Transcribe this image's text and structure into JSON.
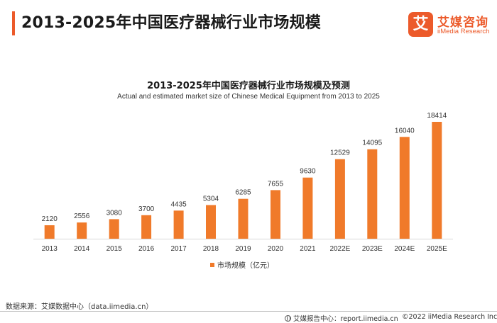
{
  "header": {
    "title": "2013-2025年中国医疗器械行业市场规模"
  },
  "logo": {
    "mark": "艾",
    "name_cn": "艾媒咨询",
    "name_en": "iiMedia Research"
  },
  "colors": {
    "accent": "#ec5a2a",
    "bar": "#f07a2a",
    "axis": "#d9d9d9"
  },
  "chart_data": {
    "type": "bar",
    "title": "2013-2025年中国医疗器械行业市场规模及预测",
    "subtitle": "Actual and estimated market size of Chinese Medical Equipment from 2013 to 2025",
    "categories": [
      "2013",
      "2014",
      "2015",
      "2016",
      "2017",
      "2018",
      "2019",
      "2020",
      "2021",
      "2022E",
      "2023E",
      "2024E",
      "2025E"
    ],
    "series": [
      {
        "name": "市场规模（亿元）",
        "values": [
          2120,
          2556,
          3080,
          3700,
          4435,
          5304,
          6285,
          7655,
          9630,
          12529,
          14095,
          16040,
          18414
        ]
      }
    ],
    "ylim": [
      0,
      18414
    ],
    "grid": false,
    "legend_position": "bottom",
    "data_labels": true
  },
  "footer": {
    "source": "数据来源：艾媒数据中心（data.iimedia.cn）",
    "report_center": "艾媒报告中心：report.iimedia.cn",
    "copyright": "©2022 iiMedia Research Inc"
  }
}
